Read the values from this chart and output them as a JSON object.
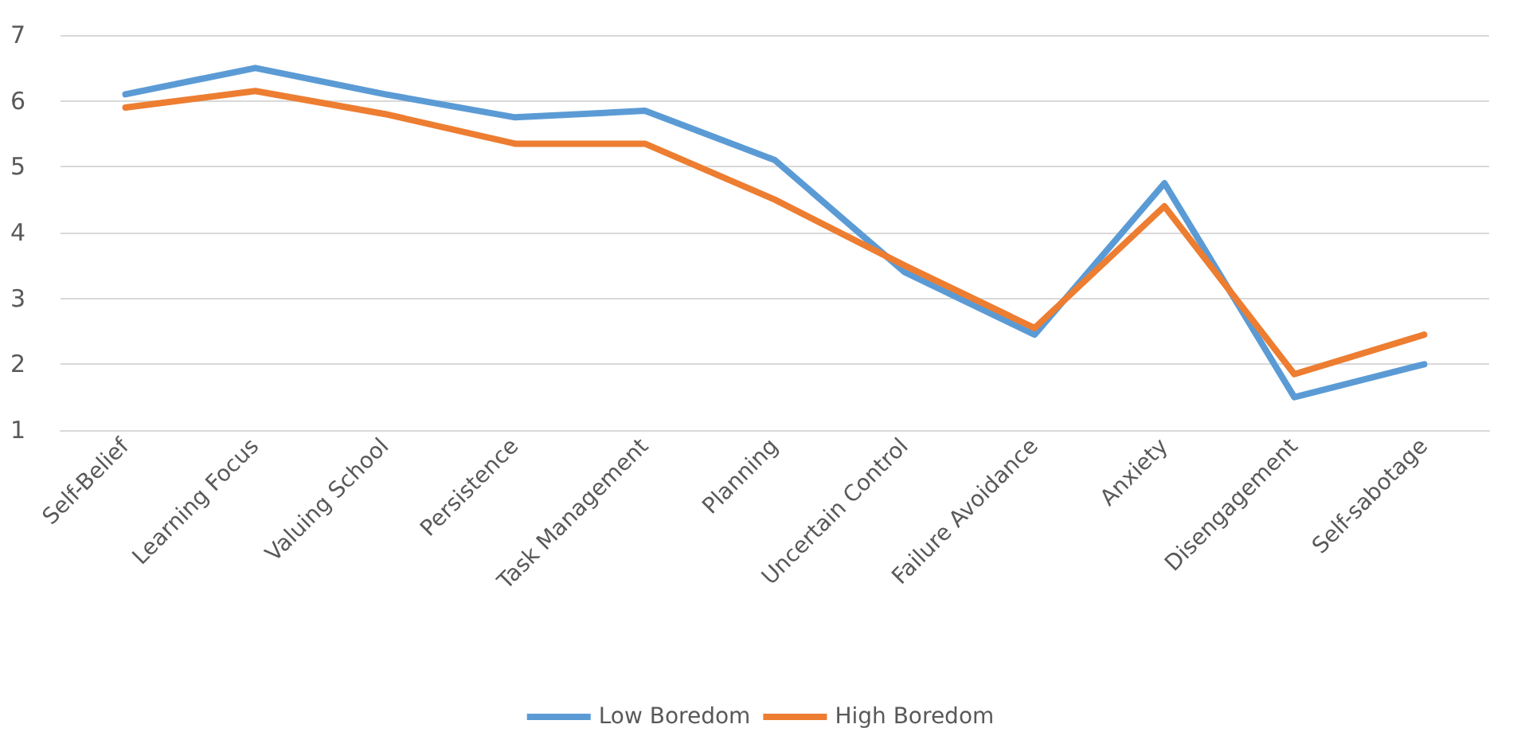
{
  "chart_data": {
    "type": "line",
    "categories": [
      "Self-Belief",
      "Learning Focus",
      "Valuing School",
      "Persistence",
      "Task Management",
      "Planning",
      "Uncertain Control",
      "Failure Avoidance",
      "Anxiety",
      "Disengagement",
      "Self-sabotage"
    ],
    "series": [
      {
        "name": "Low Boredom",
        "color": "#5b9bd5",
        "values": [
          6.1,
          6.5,
          6.1,
          5.75,
          5.85,
          5.1,
          3.4,
          2.45,
          4.75,
          1.5,
          2.0
        ]
      },
      {
        "name": "High Boredom",
        "color": "#ed7d31",
        "values": [
          5.9,
          6.15,
          5.8,
          5.35,
          5.35,
          4.5,
          3.5,
          2.55,
          4.4,
          1.85,
          2.45
        ]
      }
    ],
    "ylim": [
      1,
      7
    ],
    "yticks": [
      1,
      2,
      3,
      4,
      5,
      6,
      7
    ],
    "grid": "y",
    "legend": "bottom",
    "marker": "none",
    "line_style": "solid"
  }
}
